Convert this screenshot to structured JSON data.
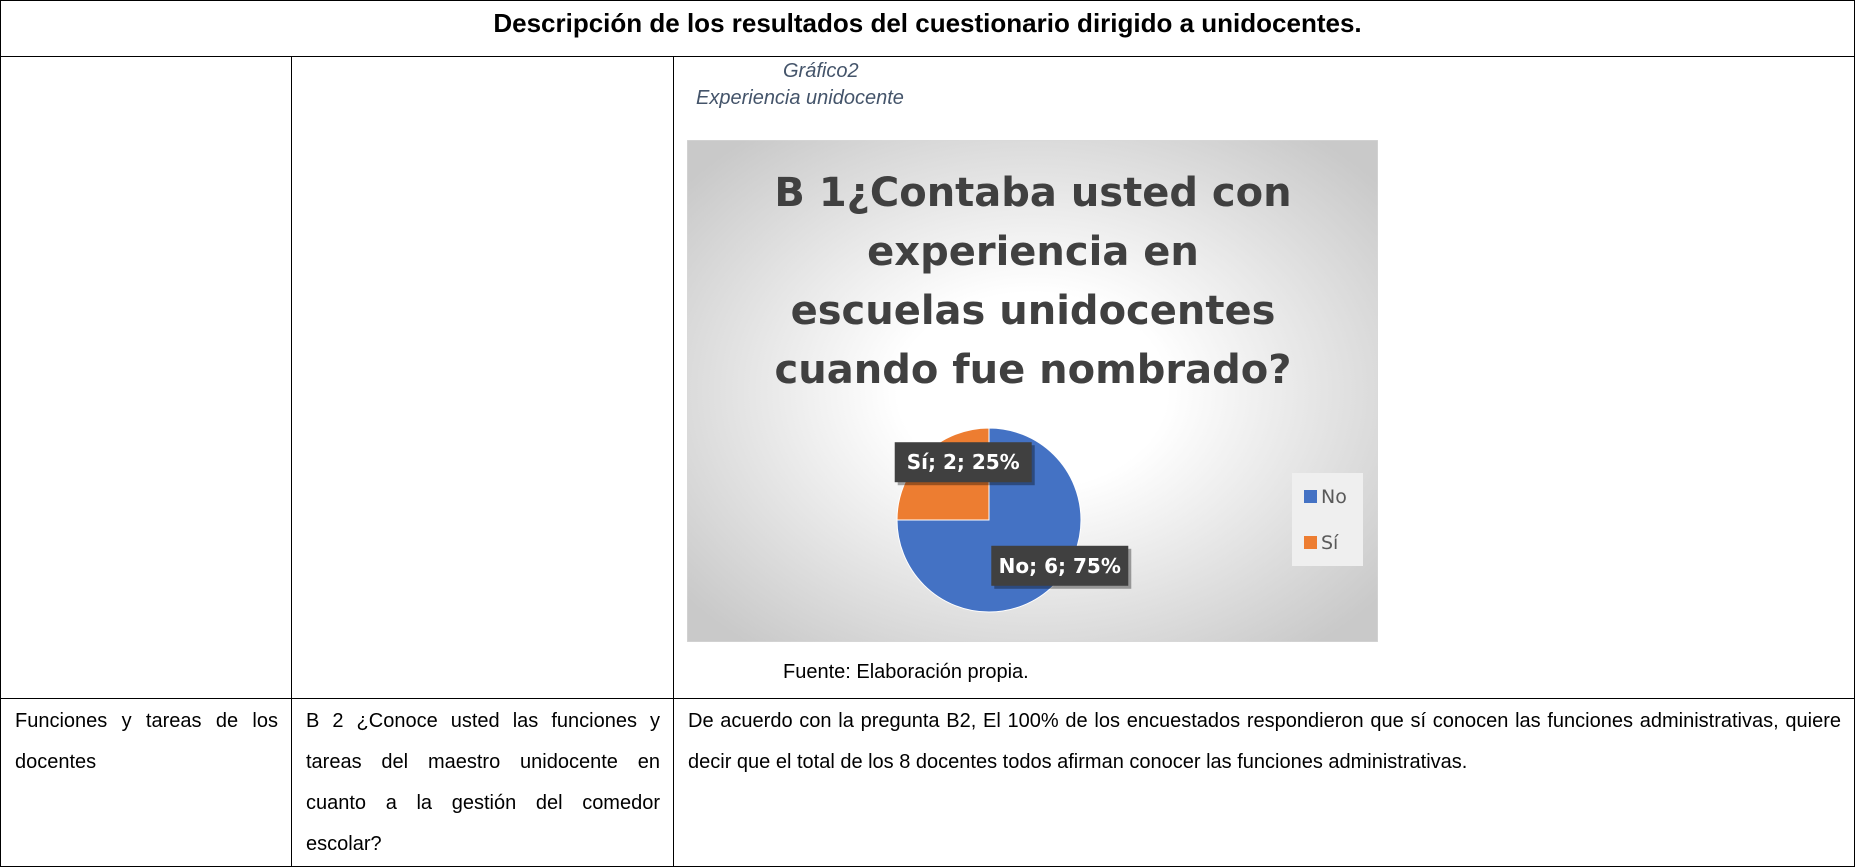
{
  "title": "Descripción de los resultados del cuestionario dirigido a unidocentes.",
  "figure": {
    "caption_label": "Gráfico2",
    "caption_title": "Experiencia unidocente",
    "source": "Fuente: Elaboración propia.",
    "chart": {
      "type": "pie",
      "title": "B 1¿Contaba usted con experiencia en escuelas unidocentes cuando fue nombrado?",
      "categories": [
        "No",
        "Sí"
      ],
      "values": [
        75,
        25
      ],
      "value_labels": [
        "No; 6; 75%",
        "Sí; 2; 25%"
      ],
      "colors": [
        "#4472c4",
        "#ed7d31"
      ],
      "legend": "right"
    }
  },
  "table": {
    "rows": [
      [
        "Funciones y tareas de los docentes",
        "B 2 ¿Conoce usted las funciones y tareas del maestro unidocente en cuanto a la gestión del comedor escolar?",
        "De acuerdo con la pregunta B2, El 100% de los encuestados respondieron que sí conocen las funciones administrativas, quiere decir que el total de los 8 docentes todos afirman conocer las funciones administrativas."
      ]
    ]
  }
}
